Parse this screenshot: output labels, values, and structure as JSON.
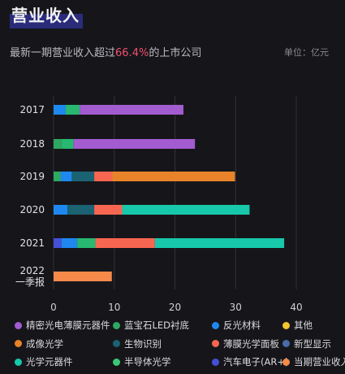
{
  "header": {
    "title": "营业收入",
    "subtitle_before": "最新一期营业收入超过",
    "subtitle_highlight": "66.4%",
    "subtitle_after": "的上市公司",
    "unit": "单位：亿元"
  },
  "colors": {
    "highlight": "#f0506e",
    "background": "#16161a"
  },
  "chart_data": {
    "type": "bar",
    "orientation": "horizontal",
    "stacked": true,
    "title": "",
    "xlabel": "",
    "ylabel": "",
    "xlim": [
      0,
      40
    ],
    "x_ticks": [
      "0",
      "10",
      "20",
      "30",
      "40"
    ],
    "categories": [
      "2017",
      "2018",
      "2019",
      "2020",
      "2021",
      "2022\n一季报"
    ],
    "grid": true,
    "legend_position": "bottom",
    "series": [
      {
        "name": "半导体光学",
        "color": "#3cc874",
        "values": [
          0,
          0,
          0,
          0,
          0,
          0
        ]
      },
      {
        "name": "蓝宝石LED衬底",
        "color": "#2fa861",
        "values": [
          0,
          1.3,
          1.2,
          0,
          0,
          0
        ]
      },
      {
        "name": "汽车电子(AR+)",
        "color": "#4450d8",
        "values": [
          0,
          0,
          0,
          0,
          1.3,
          0
        ]
      },
      {
        "name": "反光材料",
        "color": "#1e88f0",
        "values": [
          2.0,
          0,
          1.8,
          2.3,
          2.6,
          0
        ]
      },
      {
        "name": "其他",
        "color": "#f2c531",
        "values": [
          0,
          0,
          0,
          0,
          0,
          0
        ]
      },
      {
        "name": "光学元器件",
        "color": "#28b870",
        "values": [
          2.3,
          2.0,
          0,
          0,
          3.0,
          0
        ]
      },
      {
        "name": "生物识别",
        "color": "#1b6272",
        "values": [
          0,
          0,
          3.7,
          4.4,
          0,
          0
        ]
      },
      {
        "name": "精密光电薄膜元器件",
        "color": "#a35bd0",
        "values": [
          17.1,
          20.0,
          0,
          0,
          0,
          0
        ]
      },
      {
        "name": "薄膜光学面板",
        "color": "#f76651",
        "values": [
          0,
          0,
          3.0,
          4.6,
          9.8,
          0
        ]
      },
      {
        "name": "成像光学",
        "color": "#e8832a",
        "values": [
          0,
          0,
          20.2,
          0,
          0,
          0
        ]
      },
      {
        "name": "新型显示",
        "color": "#4a6aa8",
        "values": [
          0,
          0,
          0,
          0,
          0,
          0
        ]
      },
      {
        "name": "光学元器件",
        "color": "#17c8aa",
        "values": [
          0,
          0,
          0,
          21.0,
          21.3,
          0
        ]
      },
      {
        "name": "当期营业收入",
        "color": "#f58a4a",
        "values": [
          0,
          0,
          0,
          0,
          0,
          9.6
        ]
      }
    ]
  },
  "legend": {
    "items": [
      {
        "label": "精密光电薄膜元器件",
        "color": "#a35bd0"
      },
      {
        "label": "蓝宝石LED衬底",
        "color": "#2fa861"
      },
      {
        "label": "反光材料",
        "color": "#1e88f0"
      },
      {
        "label": "其他",
        "color": "#f2c531"
      },
      {
        "label": "成像光学",
        "color": "#e8832a"
      },
      {
        "label": "生物识别",
        "color": "#1b6272"
      },
      {
        "label": "薄膜光学面板",
        "color": "#f76651"
      },
      {
        "label": "新型显示",
        "color": "#4a6aa8"
      },
      {
        "label": "光学元器件",
        "color": "#17c8aa"
      },
      {
        "label": "半导体光学",
        "color": "#3cc874"
      },
      {
        "label": "汽车电子(AR+)",
        "color": "#4450d8"
      },
      {
        "label": "当期营业收入",
        "color": "#f58a4a"
      }
    ]
  }
}
